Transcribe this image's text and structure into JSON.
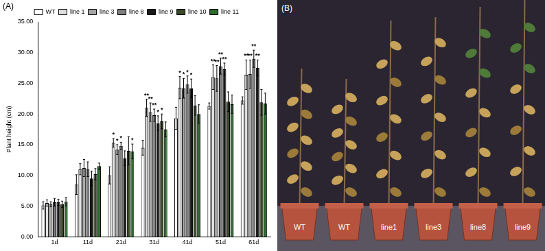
{
  "chart_data": {
    "type": "bar",
    "y_label": "Plant height (cm)",
    "categories": [
      "1d",
      "11d",
      "21d",
      "31d",
      "41d",
      "51d",
      "61d"
    ],
    "series": [
      {
        "name": "WT",
        "color": "#ffffff",
        "values": [
          5.1,
          8.5,
          10.0,
          14.5,
          19.3,
          21.3,
          22.2
        ],
        "errors": [
          0.6,
          1.6,
          1.4,
          1.2,
          1.8,
          0.5,
          0.6
        ],
        "significance": [
          null,
          null,
          null,
          null,
          null,
          null,
          null
        ]
      },
      {
        "name": "line 1",
        "color": "#e0e0e0",
        "values": [
          5.5,
          11.0,
          15.3,
          21.0,
          24.3,
          26.0,
          26.4
        ],
        "errors": [
          0.5,
          0.9,
          0.7,
          1.4,
          1.8,
          2.0,
          2.4
        ],
        "significance": [
          null,
          null,
          "*",
          "**",
          "*",
          "**",
          "**"
        ]
      },
      {
        "name": "line 3",
        "color": "#a6a6a6",
        "values": [
          5.3,
          11.2,
          14.2,
          20.3,
          24.2,
          25.8,
          26.5
        ],
        "errors": [
          0.4,
          1.4,
          0.8,
          1.5,
          1.6,
          2.1,
          2.3
        ],
        "significance": [
          null,
          null,
          "*",
          "**",
          "*",
          "**",
          "**"
        ]
      },
      {
        "name": "line 8",
        "color": "#7f7f7f",
        "values": [
          5.6,
          11.0,
          14.8,
          19.8,
          24.8,
          27.8,
          29.0
        ],
        "errors": [
          0.6,
          1.2,
          0.6,
          1.0,
          1.4,
          1.3,
          1.4
        ],
        "significance": [
          null,
          null,
          "*",
          "**",
          "*",
          "**",
          "**"
        ]
      },
      {
        "name": "line 9",
        "color": "#1a1a1a",
        "values": [
          5.6,
          9.5,
          12.8,
          18.5,
          24.2,
          27.3,
          27.5
        ],
        "errors": [
          0.5,
          1.2,
          1.2,
          1.2,
          1.5,
          1.0,
          1.3
        ],
        "significance": [
          null,
          null,
          null,
          "*",
          "*",
          "**",
          "**"
        ]
      },
      {
        "name": "line 10",
        "color": "#3a4a26",
        "values": [
          5.3,
          10.2,
          14.0,
          18.8,
          21.4,
          22.0,
          21.9
        ],
        "errors": [
          0.5,
          0.9,
          2.3,
          1.2,
          1.6,
          1.6,
          2.1
        ],
        "significance": [
          null,
          null,
          null,
          "*",
          null,
          null,
          null
        ]
      },
      {
        "name": "line 11",
        "color": "#2e6b2e",
        "values": [
          5.7,
          11.5,
          13.9,
          17.5,
          20.0,
          21.6,
          21.7
        ],
        "errors": [
          0.7,
          0.5,
          1.2,
          1.2,
          1.5,
          1.5,
          1.7
        ],
        "significance": [
          null,
          null,
          "*",
          null,
          null,
          null,
          null
        ]
      }
    ],
    "ylim": [
      0,
      35
    ],
    "yticks": [
      {
        "value": 0,
        "label": "0.00"
      },
      {
        "value": 5,
        "label": "5.00"
      },
      {
        "value": 10,
        "label": "10.00"
      },
      {
        "value": 15,
        "label": "15.00"
      },
      {
        "value": 20,
        "label": "20.00"
      },
      {
        "value": 25,
        "label": "25.00"
      },
      {
        "value": 30,
        "label": "30.00"
      },
      {
        "value": 35,
        "label": "35.00"
      }
    ],
    "grid": false,
    "legend": "top"
  },
  "panel_a_label": "(A)",
  "panel_b": {
    "label": "(B)",
    "pots": [
      "WT",
      "WT",
      "line1",
      "line3",
      "line8",
      "line9"
    ]
  }
}
